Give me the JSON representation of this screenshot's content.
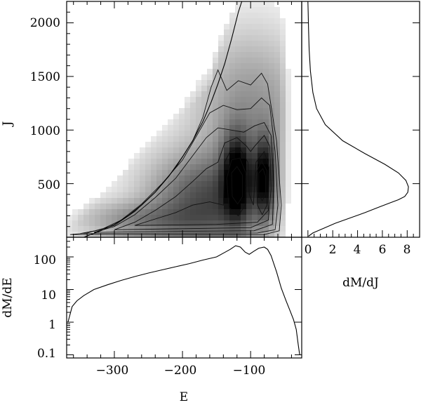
{
  "chart_data": [
    {
      "panel": "main",
      "type": "heatmap",
      "xlabel": "E",
      "ylabel": "J",
      "xlim": [
        -370,
        -25
      ],
      "ylim": [
        0,
        2200
      ],
      "x_ticks": [
        -300,
        -200,
        -100
      ],
      "x_tick_labels": [
        "",
        "",
        ""
      ],
      "y_ticks": [
        500,
        1000,
        1500,
        2000
      ],
      "y_tick_labels": [
        "500",
        "1000",
        "1500",
        "2000"
      ],
      "colormap": "greyscale (white = low density, black = high density)",
      "density_peaks": [
        {
          "x": -120,
          "y": 560,
          "sx": 14,
          "sy": 260,
          "w": 1.0
        },
        {
          "x": -80,
          "y": 560,
          "sx": 10,
          "sy": 240,
          "w": 0.9
        },
        {
          "x": -160,
          "y": 350,
          "sx": 55,
          "sy": 280,
          "w": 0.55
        },
        {
          "x": -250,
          "y": 160,
          "sx": 60,
          "sy": 110,
          "w": 0.28
        },
        {
          "x": -100,
          "y": 1150,
          "sx": 50,
          "sy": 450,
          "w": 0.25
        }
      ],
      "contour_lines": [
        {
          "level": 1,
          "points": [
            [
              -365,
              25
            ],
            [
              -340,
              40
            ],
            [
              -300,
              110
            ],
            [
              -270,
              240
            ],
            [
              -240,
              420
            ],
            [
              -210,
              650
            ],
            [
              -185,
              900
            ],
            [
              -170,
              1120
            ],
            [
              -158,
              1400
            ],
            [
              -148,
              1560
            ],
            [
              -135,
              1370
            ],
            [
              -118,
              1460
            ],
            [
              -100,
              1420
            ],
            [
              -84,
              1530
            ],
            [
              -75,
              1430
            ],
            [
              -62,
              900
            ],
            [
              -55,
              300
            ],
            [
              -58,
              60
            ],
            [
              -80,
              25
            ],
            [
              -200,
              22
            ],
            [
              -365,
              25
            ]
          ]
        },
        {
          "level": 2,
          "points": [
            [
              -350,
              35
            ],
            [
              -320,
              70
            ],
            [
              -290,
              160
            ],
            [
              -260,
              310
            ],
            [
              -230,
              500
            ],
            [
              -200,
              720
            ],
            [
              -178,
              960
            ],
            [
              -160,
              1160
            ],
            [
              -140,
              1230
            ],
            [
              -120,
              1190
            ],
            [
              -100,
              1200
            ],
            [
              -84,
              1300
            ],
            [
              -72,
              1230
            ],
            [
              -64,
              800
            ],
            [
              -60,
              300
            ],
            [
              -64,
              70
            ],
            [
              -90,
              40
            ],
            [
              -200,
              38
            ],
            [
              -350,
              35
            ]
          ]
        },
        {
          "level": 3,
          "points": [
            [
              -330,
              45
            ],
            [
              -300,
              100
            ],
            [
              -270,
              210
            ],
            [
              -240,
              370
            ],
            [
              -210,
              550
            ],
            [
              -185,
              760
            ],
            [
              -165,
              930
            ],
            [
              -148,
              1020
            ],
            [
              -128,
              1000
            ],
            [
              -110,
              980
            ],
            [
              -94,
              1040
            ],
            [
              -80,
              1070
            ],
            [
              -70,
              950
            ],
            [
              -66,
              500
            ],
            [
              -68,
              120
            ],
            [
              -95,
              60
            ],
            [
              -200,
              55
            ],
            [
              -330,
              45
            ]
          ]
        },
        {
          "level": 4,
          "points": [
            [
              -300,
              70
            ],
            [
              -270,
              140
            ],
            [
              -240,
              250
            ],
            [
              -210,
              380
            ],
            [
              -185,
              520
            ],
            [
              -165,
              640
            ],
            [
              -148,
              700
            ],
            [
              -138,
              880
            ],
            [
              -120,
              930
            ],
            [
              -106,
              850
            ],
            [
              -100,
              800
            ],
            [
              -94,
              850
            ],
            [
              -80,
              950
            ],
            [
              -72,
              850
            ],
            [
              -70,
              450
            ],
            [
              -74,
              160
            ],
            [
              -100,
              90
            ],
            [
              -200,
              80
            ],
            [
              -300,
              70
            ]
          ]
        },
        {
          "level": 5,
          "points": [
            [
              -270,
              110
            ],
            [
              -240,
              170
            ],
            [
              -210,
              230
            ],
            [
              -185,
              300
            ],
            [
              -160,
              330
            ],
            [
              -140,
              300
            ],
            [
              -138,
              700
            ],
            [
              -130,
              800
            ],
            [
              -115,
              820
            ],
            [
              -104,
              700
            ],
            [
              -102,
              400
            ],
            [
              -96,
              300
            ],
            [
              -92,
              700
            ],
            [
              -80,
              800
            ],
            [
              -73,
              650
            ],
            [
              -74,
              250
            ],
            [
              -90,
              140
            ],
            [
              -150,
              120
            ],
            [
              -270,
              110
            ]
          ]
        },
        {
          "level": 6,
          "points": [
            [
              -132,
              280
            ],
            [
              -135,
              550
            ],
            [
              -128,
              720
            ],
            [
              -116,
              740
            ],
            [
              -107,
              600
            ],
            [
              -108,
              300
            ],
            [
              -118,
              200
            ],
            [
              -132,
              280
            ]
          ]
        },
        {
          "level": 6,
          "points": [
            [
              -90,
              300
            ],
            [
              -92,
              600
            ],
            [
              -84,
              710
            ],
            [
              -76,
              620
            ],
            [
              -76,
              300
            ],
            [
              -83,
              210
            ],
            [
              -90,
              300
            ]
          ]
        },
        {
          "level": 7,
          "points": [
            [
              -127,
              380
            ],
            [
              -128,
              600
            ],
            [
              -120,
              660
            ],
            [
              -112,
              580
            ],
            [
              -112,
              380
            ],
            [
              -119,
              310
            ],
            [
              -127,
              380
            ]
          ]
        },
        {
          "level": 7,
          "points": [
            [
              -88,
              400
            ],
            [
              -88,
              600
            ],
            [
              -82,
              640
            ],
            [
              -78,
              570
            ],
            [
              -78,
              400
            ],
            [
              -83,
              340
            ],
            [
              -88,
              400
            ]
          ]
        }
      ],
      "red_curve": {
        "color": "#dd1111",
        "points": [
          [
            -345,
            0
          ],
          [
            -320,
            60
          ],
          [
            -300,
            120
          ],
          [
            -280,
            200
          ],
          [
            -260,
            300
          ],
          [
            -240,
            420
          ],
          [
            -220,
            570
          ],
          [
            -200,
            750
          ],
          [
            -185,
            900
          ],
          [
            -170,
            1080
          ],
          [
            -158,
            1260
          ],
          [
            -148,
            1430
          ],
          [
            -138,
            1620
          ],
          [
            -128,
            1850
          ],
          [
            -118,
            2100
          ],
          [
            -113,
            2200
          ]
        ]
      }
    },
    {
      "panel": "right",
      "type": "line",
      "xlabel": "dM/dJ",
      "ylabel": "",
      "xlim": [
        -0.5,
        9
      ],
      "ylim": [
        0,
        2200
      ],
      "x_ticks": [
        0,
        2,
        4,
        6,
        8
      ],
      "x_tick_labels": [
        "0",
        "2",
        "4",
        "6",
        "8"
      ],
      "y_ticks": [
        500,
        1000,
        1500,
        2000
      ],
      "series": [
        {
          "x": [
            0.05,
            0.4,
            1.2,
            2.2,
            3.4,
            4.6,
            5.7,
            6.6,
            7.3,
            7.8,
            8.05,
            8.1,
            7.9,
            7.3,
            6.2,
            4.6,
            2.8,
            1.4,
            0.7,
            0.4,
            0.2,
            0.1,
            0.05,
            0.02,
            0.0
          ],
          "y": [
            10,
            40,
            80,
            130,
            180,
            230,
            280,
            320,
            350,
            380,
            420,
            470,
            530,
            600,
            680,
            780,
            900,
            1050,
            1200,
            1350,
            1550,
            1750,
            1950,
            2100,
            2200
          ]
        }
      ]
    },
    {
      "panel": "bottom",
      "type": "line",
      "xlabel": "E",
      "ylabel": "dM/dE",
      "scale_y": "log",
      "xlim": [
        -370,
        -25
      ],
      "ylim": [
        0.08,
        400
      ],
      "x_ticks": [
        -300,
        -200,
        -100
      ],
      "x_tick_labels": [
        "−300",
        "−200",
        "−100"
      ],
      "y_ticks": [
        0.1,
        1,
        10,
        100
      ],
      "y_tick_labels": [
        "0.1",
        "1",
        "10",
        "100"
      ],
      "series": [
        {
          "x": [
            -368,
            -362,
            -355,
            -345,
            -330,
            -310,
            -290,
            -270,
            -250,
            -230,
            -210,
            -190,
            -170,
            -150,
            -140,
            -130,
            -122,
            -115,
            -108,
            -102,
            -95,
            -88,
            -80,
            -75,
            -70,
            -62,
            -55,
            -48,
            -42,
            -37,
            -33,
            -30,
            -28
          ],
          "y": [
            1.0,
            3.0,
            4.5,
            6.5,
            10,
            14,
            19,
            25,
            32,
            40,
            50,
            62,
            80,
            100,
            130,
            170,
            220,
            200,
            140,
            120,
            150,
            185,
            200,
            170,
            110,
            35,
            11,
            4.5,
            2.2,
            1.2,
            0.6,
            0.2,
            0.1
          ]
        }
      ]
    }
  ]
}
